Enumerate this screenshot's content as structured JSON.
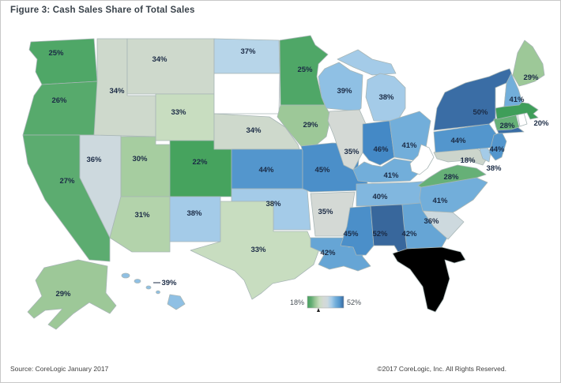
{
  "title": "Figure 3: Cash Sales Share of Total Sales",
  "footer": {
    "source": "Source: CoreLogic January 2017",
    "copyright": "©2017 CoreLogic, Inc. All Rights Reserved."
  },
  "chart_data": {
    "type": "choropleth",
    "map_region": "United States (states, incl. Alaska and Hawaii insets)",
    "title": "Figure 3: Cash Sales Share of Total Sales",
    "unit": "percent of total sales that are cash sales",
    "colorscale": {
      "min": 18,
      "max": 52,
      "low_color": "#44a05c",
      "mid_color": "#d4d9d5",
      "high_color": "#38679c",
      "description": "diverging green (low) to gray (middle ~35%) to blue (high)"
    },
    "legend": {
      "min_label": "18%",
      "max_label": "52%",
      "gradient_stops": [
        "#44a05c",
        "#63ad74",
        "#9dc898",
        "#c8ddc0",
        "#d4d9d5",
        "#cdd9de",
        "#a4cbe8",
        "#72aeda",
        "#5396cd",
        "#38679c"
      ]
    },
    "no_data_color": "#ffffff",
    "no_data_states": [
      "South Dakota",
      "Vermont",
      "West Virginia",
      "Rhode Island"
    ],
    "states": [
      {
        "id": "WA",
        "name": "Washington",
        "value": 25,
        "label": "25%",
        "color": "#4fa767"
      },
      {
        "id": "OR",
        "name": "Oregon",
        "value": 26,
        "label": "26%",
        "color": "#57aa6c"
      },
      {
        "id": "CA",
        "name": "California",
        "value": 27,
        "label": "27%",
        "color": "#5cac70"
      },
      {
        "id": "NV",
        "name": "Nevada",
        "value": 36,
        "label": "36%",
        "color": "#cdd9de"
      },
      {
        "id": "ID",
        "name": "Idaho",
        "value": 34,
        "label": "34%",
        "color": "#ced9cc"
      },
      {
        "id": "MT",
        "name": "Montana",
        "value": 34,
        "label": "34%",
        "color": "#ced9cc"
      },
      {
        "id": "WY",
        "name": "Wyoming",
        "value": 33,
        "label": "33%",
        "color": "#c8ddc0"
      },
      {
        "id": "UT",
        "name": "Utah",
        "value": 30,
        "label": "30%",
        "color": "#a6cda0"
      },
      {
        "id": "CO",
        "name": "Colorado",
        "value": 22,
        "label": "22%",
        "color": "#46a35e"
      },
      {
        "id": "AZ",
        "name": "Arizona",
        "value": 31,
        "label": "31%",
        "color": "#b3d3ab"
      },
      {
        "id": "NM",
        "name": "New Mexico",
        "value": 38,
        "label": "38%",
        "color": "#a4cbe8"
      },
      {
        "id": "ND",
        "name": "North Dakota",
        "value": 37,
        "label": "37%",
        "color": "#b7d5e9"
      },
      {
        "id": "SD",
        "name": "South Dakota",
        "value": null,
        "label": "",
        "color": "#ffffff"
      },
      {
        "id": "NE",
        "name": "Nebraska",
        "value": 34,
        "label": "34%",
        "color": "#ced9cc"
      },
      {
        "id": "KS",
        "name": "Kansas",
        "value": 44,
        "label": "44%",
        "color": "#5396cd"
      },
      {
        "id": "OK",
        "name": "Oklahoma",
        "value": 38,
        "label": "38%",
        "color": "#a4cbe8"
      },
      {
        "id": "TX",
        "name": "Texas",
        "value": 33,
        "label": "33%",
        "color": "#c8ddc0"
      },
      {
        "id": "MN",
        "name": "Minnesota",
        "value": 25,
        "label": "25%",
        "color": "#4fa767"
      },
      {
        "id": "IA",
        "name": "Iowa",
        "value": 29,
        "label": "29%",
        "color": "#9dc898"
      },
      {
        "id": "MO",
        "name": "Missouri",
        "value": 45,
        "label": "45%",
        "color": "#4b8fc9"
      },
      {
        "id": "AR",
        "name": "Arkansas",
        "value": 35,
        "label": "35%",
        "color": "#d4d9d5"
      },
      {
        "id": "LA",
        "name": "Louisiana",
        "value": 42,
        "label": "42%",
        "color": "#66a5d5"
      },
      {
        "id": "WI",
        "name": "Wisconsin",
        "value": 39,
        "label": "39%",
        "color": "#8fc0e4"
      },
      {
        "id": "IL",
        "name": "Illinois",
        "value": 35,
        "label": "35%",
        "color": "#d4d9d5"
      },
      {
        "id": "MI",
        "name": "Michigan",
        "value": 38,
        "label": "38%",
        "color": "#a4cbe8"
      },
      {
        "id": "IN",
        "name": "Indiana",
        "value": 46,
        "label": "46%",
        "color": "#4489c6"
      },
      {
        "id": "OH",
        "name": "Ohio",
        "value": 41,
        "label": "41%",
        "color": "#72aeda"
      },
      {
        "id": "KY",
        "name": "Kentucky",
        "value": 41,
        "label": "41%",
        "color": "#72aeda"
      },
      {
        "id": "TN",
        "name": "Tennessee",
        "value": 40,
        "label": "40%",
        "color": "#81b7df"
      },
      {
        "id": "MS",
        "name": "Mississippi",
        "value": 45,
        "label": "45%",
        "color": "#4b8fc9"
      },
      {
        "id": "AL",
        "name": "Alabama",
        "value": 52,
        "label": "52%",
        "color": "#38679c"
      },
      {
        "id": "GA",
        "name": "Georgia",
        "value": 42,
        "label": "42%",
        "color": "#66a5d5"
      },
      {
        "id": "SC",
        "name": "South Carolina",
        "value": 36,
        "label": "36%",
        "color": "#cdd9de"
      },
      {
        "id": "NC",
        "name": "North Carolina",
        "value": 41,
        "label": "41%",
        "color": "#72aeda"
      },
      {
        "id": "VA",
        "name": "Virginia",
        "value": 28,
        "label": "28%",
        "color": "#66b077"
      },
      {
        "id": "WV",
        "name": "West Virginia",
        "value": null,
        "label": "",
        "color": "#ffffff"
      },
      {
        "id": "MD",
        "name": "Maryland",
        "value": 18,
        "label": "18%",
        "color": "#ccd5cc"
      },
      {
        "id": "DE",
        "name": "Delaware",
        "value": 38,
        "label": "38%",
        "color": "#a4cbe8"
      },
      {
        "id": "PA",
        "name": "Pennsylvania",
        "value": 44,
        "label": "44%",
        "color": "#5396cd"
      },
      {
        "id": "NJ",
        "name": "New Jersey",
        "value": 44,
        "label": "44%",
        "color": "#5396cd"
      },
      {
        "id": "NY",
        "name": "New York",
        "value": 50,
        "label": "50%",
        "color": "#3a6da5"
      },
      {
        "id": "CT",
        "name": "Connecticut",
        "value": 28,
        "label": "28%",
        "color": "#66b077"
      },
      {
        "id": "RI",
        "name": "Rhode Island",
        "value": null,
        "label": "",
        "color": "#ffffff"
      },
      {
        "id": "MA",
        "name": "Massachusetts",
        "value": 20,
        "label": "20%",
        "color": "#3f9e59"
      },
      {
        "id": "VT",
        "name": "Vermont",
        "value": null,
        "label": "",
        "color": "#ffffff"
      },
      {
        "id": "NH",
        "name": "New Hampshire",
        "value": 41,
        "label": "41%",
        "color": "#72aeda"
      },
      {
        "id": "ME",
        "name": "Maine",
        "value": 29,
        "label": "29%",
        "color": "#9dc898"
      },
      {
        "id": "AK",
        "name": "Alaska",
        "value": 29,
        "label": "29%",
        "color": "#9dc898"
      },
      {
        "id": "HI",
        "name": "Hawaii",
        "value": 39,
        "label": "39%",
        "color": "#8fc0e4"
      }
    ]
  }
}
